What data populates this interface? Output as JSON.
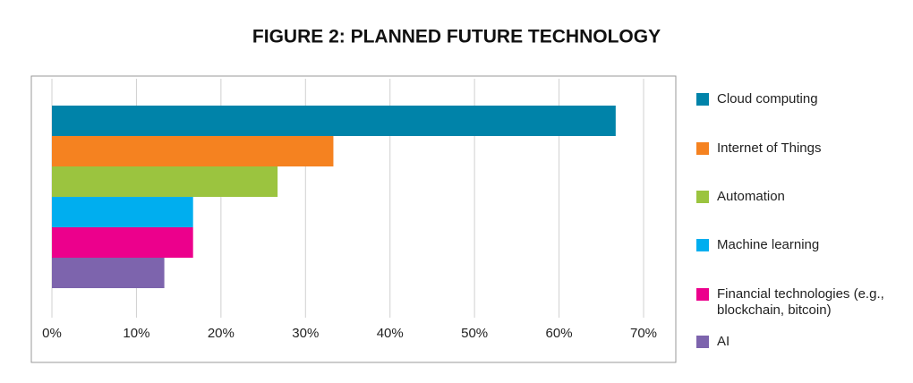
{
  "chart_data": {
    "type": "bar",
    "orientation": "horizontal",
    "title": "FIGURE 2: PLANNED FUTURE TECHNOLOGY",
    "series": [
      {
        "name": "Cloud computing",
        "color": "#0083a9",
        "values": [
          66.7
        ]
      },
      {
        "name": "Internet of Things",
        "color": "#f58220",
        "values": [
          33.3
        ]
      },
      {
        "name": "Automation",
        "color": "#9bc43f",
        "values": [
          26.7
        ]
      },
      {
        "name": "Machine learning",
        "color": "#00aeef",
        "values": [
          16.7
        ]
      },
      {
        "name": "Financial technologies (e.g., blockchain, bitcoin)",
        "color": "#ec008c",
        "values": [
          16.7
        ]
      },
      {
        "name": "AI",
        "color": "#7d64ad",
        "values": [
          13.3
        ]
      }
    ],
    "xlim": [
      0,
      70
    ],
    "xticks": [
      {
        "value": 0,
        "label": "0%"
      },
      {
        "value": 10,
        "label": "10%"
      },
      {
        "value": 20,
        "label": "20%"
      },
      {
        "value": 30,
        "label": "30%"
      },
      {
        "value": 40,
        "label": "40%"
      },
      {
        "value": 50,
        "label": "50%"
      },
      {
        "value": 60,
        "label": "60%"
      },
      {
        "value": 70,
        "label": "70%"
      }
    ],
    "grid": true,
    "legend": "right"
  }
}
